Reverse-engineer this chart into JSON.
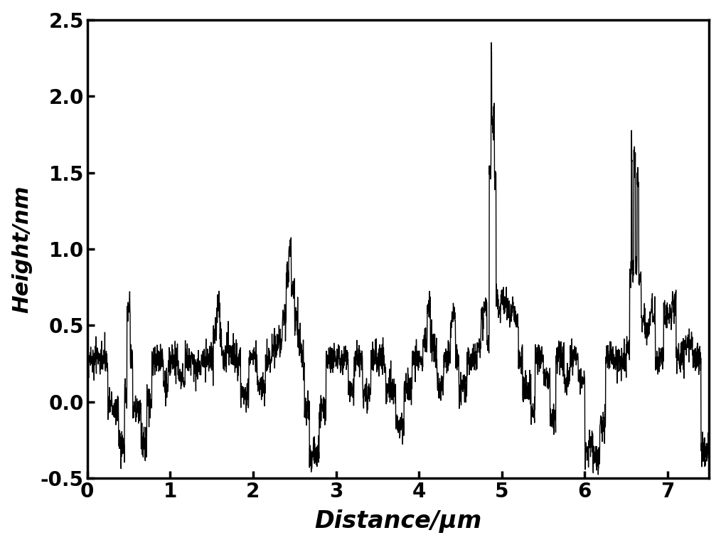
{
  "xlabel": "Distance/μm",
  "ylabel": "Height/nm",
  "xlim": [
    0,
    7.5
  ],
  "ylim": [
    -0.5,
    2.5
  ],
  "xticks": [
    0,
    1,
    2,
    3,
    4,
    5,
    6,
    7
  ],
  "yticks": [
    -0.5,
    0.0,
    0.5,
    1.0,
    1.5,
    2.0,
    2.5
  ],
  "line_color": "#000000",
  "line_width": 1.0,
  "background_color": "#ffffff",
  "xlabel_fontsize": 24,
  "ylabel_fontsize": 22,
  "tick_fontsize": 20,
  "axis_linewidth": 2.5
}
